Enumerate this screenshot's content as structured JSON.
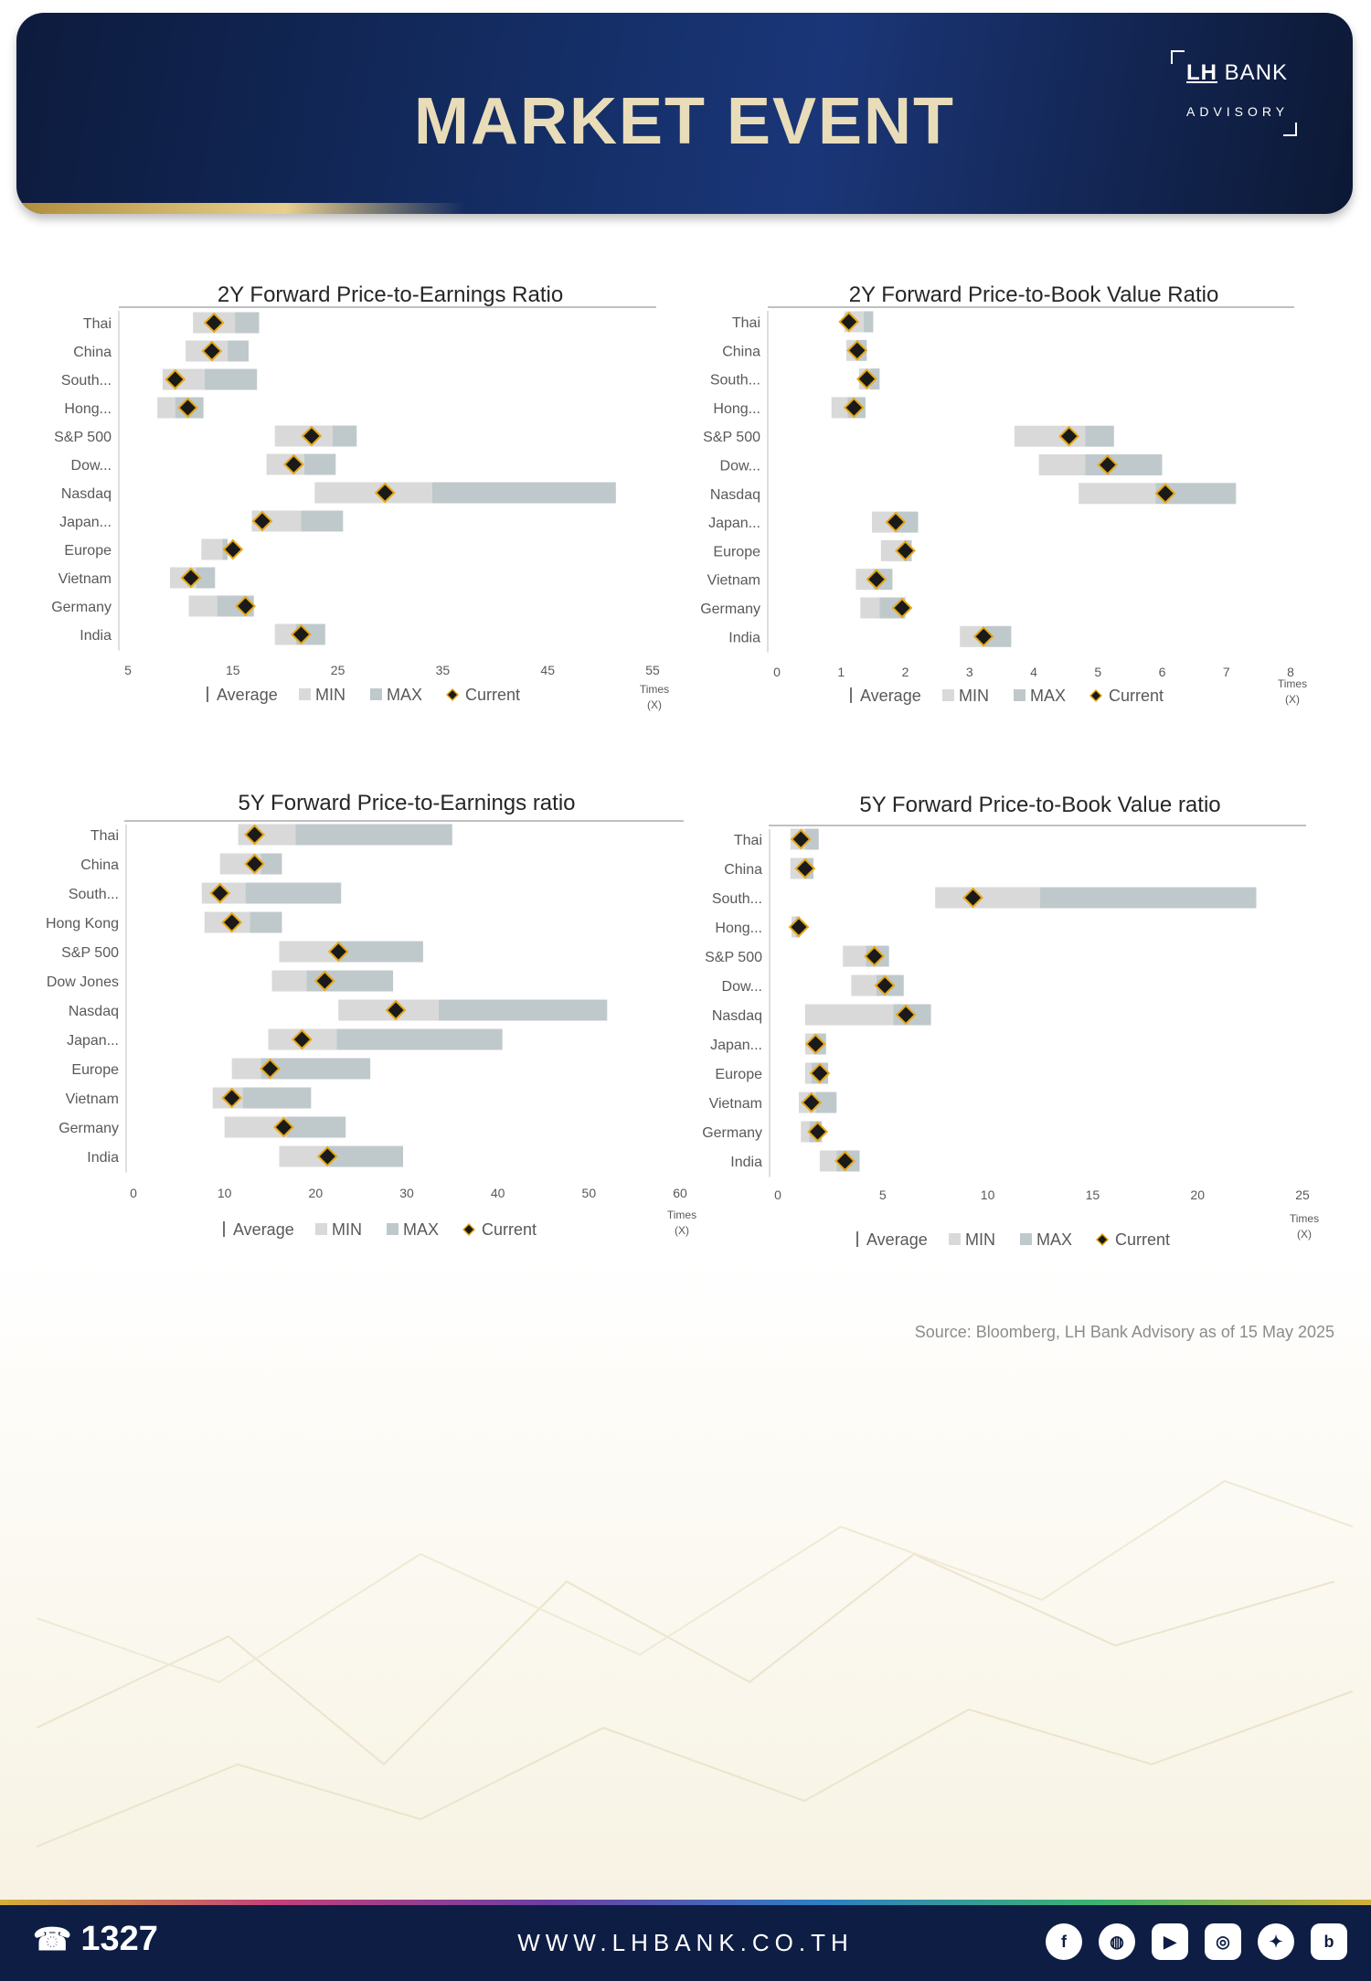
{
  "header": {
    "title": "MARKET EVENT",
    "logo_name_bold": "LH",
    "logo_name": "BANK",
    "logo_sub": "ADVISORY"
  },
  "legend": {
    "average": "Average",
    "min": "MIN",
    "max": "MAX",
    "current": "Current"
  },
  "colors": {
    "min": "#d9d9d9",
    "max": "#bfc9cc",
    "marker": "#1a1a1a",
    "marker_border": "#e6a817",
    "text": "#595959"
  },
  "chart_data": [
    {
      "type": "bar",
      "title": "2Y Forward Price-to-Earnings Ratio",
      "xlabel": "Times (X)",
      "xlim": [
        5,
        55
      ],
      "ticks": [
        "5",
        "15",
        "25",
        "35",
        "45",
        "55"
      ],
      "categories": [
        "Thai",
        "China",
        "South...",
        "Hong...",
        "S&P 500",
        "Dow...",
        "Nasdaq",
        "Japan...",
        "Europe",
        "Vietnam",
        "Germany",
        "India"
      ],
      "series": [
        {
          "name": "MIN",
          "values": [
            11.2,
            10.5,
            8.3,
            7.8,
            19.0,
            18.2,
            22.8,
            16.8,
            12.0,
            9.0,
            10.8,
            19.0
          ]
        },
        {
          "name": "MAX",
          "values": [
            17.5,
            16.5,
            17.3,
            12.2,
            26.8,
            24.8,
            51.5,
            25.5,
            14.5,
            13.3,
            17.0,
            23.8
          ]
        },
        {
          "name": "Average",
          "values": [
            15.2,
            14.5,
            12.3,
            9.5,
            24.5,
            21.8,
            34.0,
            21.5,
            14.0,
            11.5,
            13.5,
            21.0
          ]
        },
        {
          "name": "Current",
          "values": [
            13.2,
            13.0,
            9.5,
            10.7,
            22.5,
            20.8,
            29.5,
            17.8,
            15.0,
            11.0,
            16.2,
            21.5
          ]
        }
      ]
    },
    {
      "type": "bar",
      "title": "2Y Forward Price-to-Book Value Ratio",
      "xlabel": "Times (X)",
      "xlim": [
        0,
        8
      ],
      "ticks": [
        "0",
        "1",
        "2",
        "3",
        "4",
        "5",
        "6",
        "7",
        "8"
      ],
      "categories": [
        "Thai",
        "China",
        "South...",
        "Hong...",
        "S&P 500",
        "Dow...",
        "Nasdaq",
        "Japan...",
        "Europe",
        "Vietnam",
        "Germany",
        "India"
      ],
      "series": [
        {
          "name": "MIN",
          "values": [
            1.05,
            1.08,
            1.28,
            0.85,
            3.7,
            4.08,
            4.7,
            1.48,
            1.62,
            1.23,
            1.3,
            2.85
          ]
        },
        {
          "name": "MAX",
          "values": [
            1.5,
            1.4,
            1.6,
            1.38,
            5.25,
            6.0,
            7.15,
            2.2,
            2.1,
            1.8,
            2.0,
            3.65
          ]
        },
        {
          "name": "Average",
          "values": [
            1.35,
            1.25,
            1.45,
            1.1,
            4.8,
            4.8,
            5.9,
            1.85,
            1.98,
            1.5,
            1.6,
            3.25
          ]
        },
        {
          "name": "Current",
          "values": [
            1.12,
            1.25,
            1.4,
            1.2,
            4.55,
            5.15,
            6.05,
            1.85,
            2.0,
            1.55,
            1.95,
            3.22
          ]
        }
      ]
    },
    {
      "type": "bar",
      "title": "5Y Forward Price-to-Earnings ratio",
      "xlabel": "Times (X)",
      "xlim": [
        0,
        60
      ],
      "ticks": [
        "0",
        "10",
        "20",
        "30",
        "40",
        "50",
        "60"
      ],
      "categories": [
        "Thai",
        "China",
        "South...",
        "Hong Kong",
        "S&P 500",
        "Dow Jones",
        "Nasdaq",
        "Japan...",
        "Europe",
        "Vietnam",
        "Germany",
        "India"
      ],
      "series": [
        {
          "name": "MIN",
          "values": [
            11.5,
            9.5,
            7.5,
            7.8,
            16.0,
            15.2,
            22.5,
            14.8,
            10.8,
            8.7,
            10.0,
            16.0
          ]
        },
        {
          "name": "MAX",
          "values": [
            35.0,
            16.3,
            22.8,
            16.3,
            31.8,
            28.5,
            52.0,
            40.5,
            26.0,
            19.5,
            23.3,
            29.6
          ]
        },
        {
          "name": "Average",
          "values": [
            17.8,
            14.0,
            12.3,
            12.8,
            22.5,
            19.0,
            33.5,
            22.3,
            14.0,
            12.0,
            16.8,
            21.5
          ]
        },
        {
          "name": "Current",
          "values": [
            13.3,
            13.3,
            9.5,
            10.8,
            22.5,
            21.0,
            28.8,
            18.5,
            15.0,
            10.8,
            16.5,
            21.3
          ]
        }
      ]
    },
    {
      "type": "bar",
      "title": "5Y Forward Price-to-Book Value ratio",
      "xlabel": "Times (X)",
      "xlim": [
        0,
        25
      ],
      "ticks": [
        "0",
        "5",
        "10",
        "15",
        "20",
        "25"
      ],
      "categories": [
        "Thai",
        "China",
        "South...",
        "Hong...",
        "S&P 500",
        "Dow...",
        "Nasdaq",
        "Japan...",
        "Europe",
        "Vietnam",
        "Germany",
        "India"
      ],
      "series": [
        {
          "name": "MIN",
          "values": [
            0.6,
            0.6,
            7.5,
            0.65,
            3.1,
            3.5,
            1.3,
            1.3,
            1.3,
            1.0,
            1.1,
            2.0
          ]
        },
        {
          "name": "MAX",
          "values": [
            1.95,
            1.7,
            22.8,
            1.05,
            5.3,
            6.0,
            7.3,
            2.3,
            2.4,
            2.8,
            2.1,
            3.9
          ]
        },
        {
          "name": "Average",
          "values": [
            1.3,
            1.3,
            12.5,
            0.85,
            4.2,
            4.7,
            5.5,
            1.7,
            1.6,
            1.8,
            1.5,
            2.8
          ]
        },
        {
          "name": "Current",
          "values": [
            1.1,
            1.3,
            9.3,
            1.0,
            4.6,
            5.1,
            6.1,
            1.8,
            2.0,
            1.6,
            1.9,
            3.2
          ]
        }
      ]
    }
  ],
  "source": "Source: Bloomberg,  LH Bank Advisory  as of 15 May 2025",
  "footer": {
    "phone": "1327",
    "url": "WWW.LHBANK.CO.TH",
    "socials": [
      "facebook-icon",
      "line-icon",
      "youtube-icon",
      "instagram-icon",
      "twitter-icon",
      "blockdit-icon"
    ]
  }
}
